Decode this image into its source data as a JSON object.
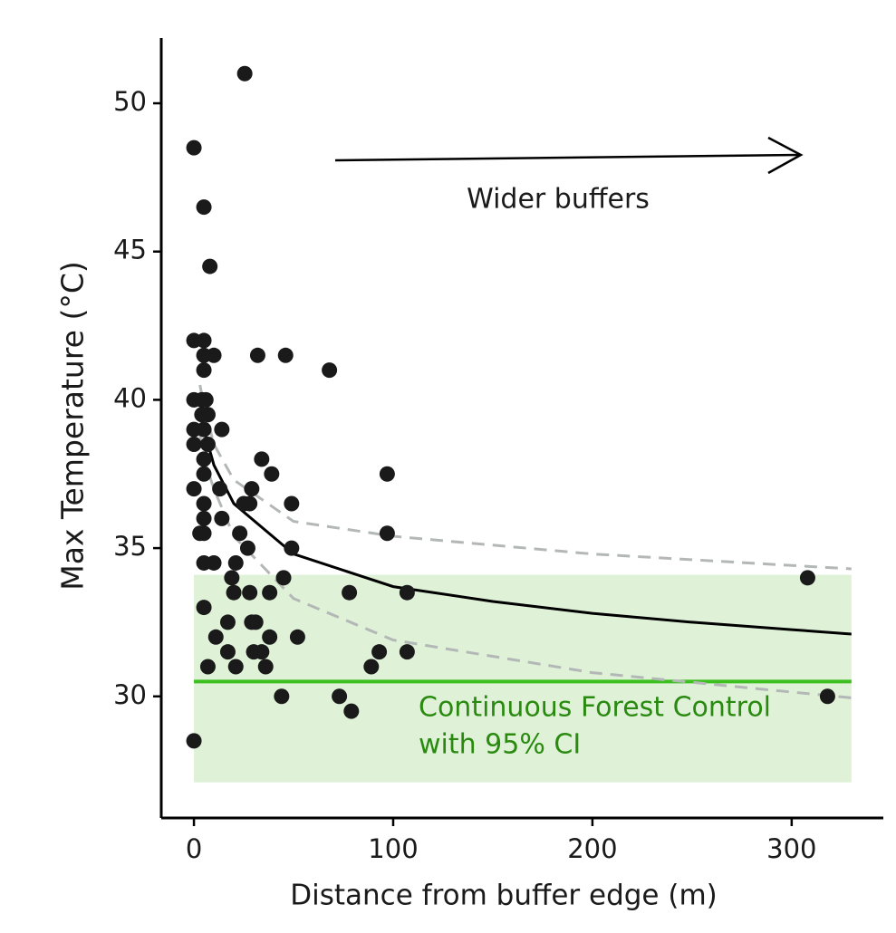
{
  "chart_data": {
    "type": "scatter",
    "xlabel": "Distance from buffer edge (m)",
    "ylabel": "Max Temperature (°C)",
    "annotation": "Wider buffers",
    "x": [
      25.5,
      0,
      5,
      8,
      0,
      5,
      5,
      10,
      5,
      32,
      46,
      68,
      0,
      4,
      6,
      0,
      4,
      5,
      7,
      14,
      0,
      7,
      5,
      34,
      5,
      39,
      97,
      0,
      13,
      29,
      5,
      25,
      28,
      49,
      5,
      14,
      3,
      5,
      23,
      97,
      27,
      49,
      5,
      10,
      21,
      19,
      45,
      308,
      20,
      28,
      38,
      78,
      107,
      5,
      17,
      29,
      31,
      11,
      38,
      52,
      17,
      30,
      34,
      93,
      107,
      7,
      21,
      36,
      89,
      44,
      73,
      318,
      79,
      0
    ],
    "values": [
      51,
      48.5,
      46.5,
      44.5,
      42,
      42,
      41.5,
      41.5,
      41,
      41.5,
      41.5,
      41,
      40,
      40,
      40,
      39,
      39.5,
      39,
      39.5,
      39,
      38.5,
      38.5,
      38,
      38,
      37.5,
      37.5,
      37.5,
      37,
      37,
      37,
      36.5,
      36.5,
      36.5,
      36.5,
      36,
      36,
      35.5,
      35.5,
      35.5,
      35.5,
      35,
      35,
      34.5,
      34.5,
      34.5,
      34,
      34,
      34,
      33.5,
      33.5,
      33.5,
      33.5,
      33.5,
      33,
      32.5,
      32.5,
      32.5,
      32,
      32,
      32,
      31.5,
      31.5,
      31.5,
      31.5,
      31.5,
      31,
      31,
      31,
      31,
      30,
      30,
      30,
      29.5,
      28.5
    ],
    "color": "#1a1a1a",
    "fit": {
      "x": [
        3,
        5,
        10,
        20,
        50,
        100,
        150,
        200,
        250,
        300,
        330
      ],
      "values": [
        39.7,
        39,
        37.8,
        36.5,
        34.8,
        33.7,
        33.2,
        32.8,
        32.5,
        32.25,
        32.1
      ],
      "color": "#000000"
    },
    "ci_upper": {
      "x": [
        3,
        5,
        10,
        20,
        50,
        100,
        200,
        330
      ],
      "values": [
        40.5,
        39.8,
        38.5,
        37.3,
        35.9,
        35.4,
        34.8,
        34.3
      ],
      "color": "#b3b8b6"
    },
    "ci_lower": {
      "x": [
        3,
        5,
        10,
        20,
        50,
        100,
        200,
        330
      ],
      "values": [
        38.8,
        38,
        37,
        35.4,
        33.3,
        31.9,
        30.8,
        29.95
      ],
      "color": "#b3b8b6"
    },
    "control": {
      "label_lines": [
        "Continuous Forest Control",
        "with 95% CI"
      ],
      "mean": 30.5,
      "xlim": [
        0,
        330
      ],
      "ylim": [
        27.1,
        34.1
      ],
      "color": "#3dbf1f",
      "band_color": "#dff2d8",
      "text_color": "#2a8a10"
    },
    "xlim": [
      -16.4,
      346
    ],
    "ylim": [
      25.9,
      52.2
    ],
    "xticks": [
      0,
      100,
      200,
      300
    ],
    "yticks": [
      30,
      35,
      40,
      45,
      50
    ],
    "grid": false
  }
}
